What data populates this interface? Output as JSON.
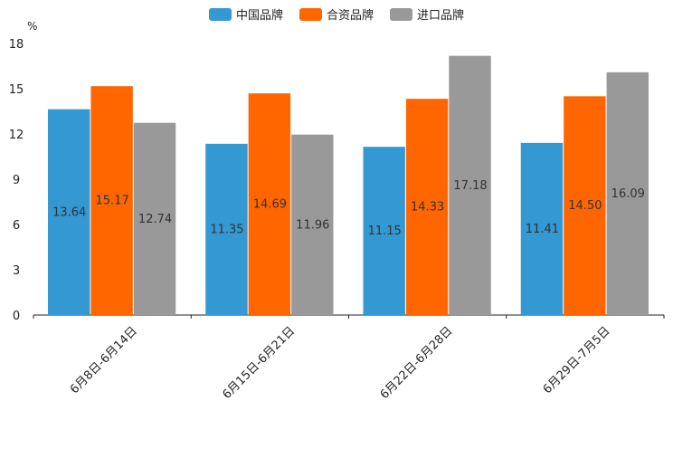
{
  "chart_data": {
    "type": "bar",
    "title": "",
    "ylabel": "%",
    "xlabel": "",
    "ylim": [
      0,
      18
    ],
    "yticks": [
      "0",
      "3",
      "6",
      "9",
      "12",
      "15",
      "18"
    ],
    "ytick_values": [
      0,
      3,
      6,
      9,
      12,
      15,
      18
    ],
    "categories": [
      "6月8日-6月14日",
      "6月15日-6月21日",
      "6月22日-6月28日",
      "6月29日-7月5日"
    ],
    "series": [
      {
        "name": "中国品牌",
        "color": "#3498d2",
        "values": [
          13.64,
          11.35,
          11.15,
          11.41
        ],
        "labels": [
          "13.64",
          "11.35",
          "11.15",
          "11.41"
        ]
      },
      {
        "name": "合资品牌",
        "color": "#ff6600",
        "values": [
          15.17,
          14.69,
          14.33,
          14.5
        ],
        "labels": [
          "15.17",
          "14.69",
          "14.33",
          "14.50"
        ]
      },
      {
        "name": "进口品牌",
        "color": "#999999",
        "values": [
          12.74,
          11.96,
          17.18,
          16.09
        ],
        "labels": [
          "12.74",
          "11.96",
          "17.18",
          "16.09"
        ]
      }
    ],
    "legend_position": "top-center"
  }
}
